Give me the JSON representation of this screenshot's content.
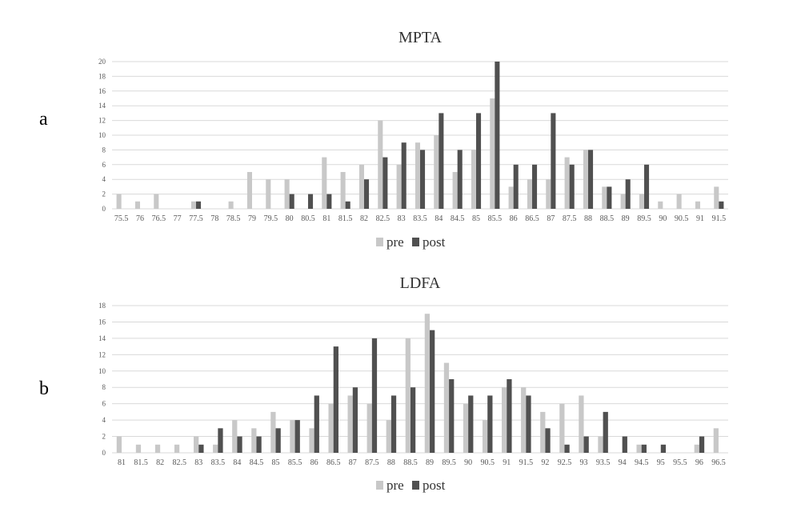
{
  "panel_labels": [
    "a",
    "b"
  ],
  "colors": {
    "pre": "#c8c8c8",
    "post": "#505050",
    "grid": "#d9d9d9",
    "text": "#595959"
  },
  "chart_data": [
    {
      "type": "bar",
      "title": "MPTA",
      "xlabel": "",
      "ylabel": "",
      "ylim": [
        0,
        20
      ],
      "ystep": 2,
      "grid": true,
      "legend": "bottom",
      "categories": [
        "75.5",
        "76",
        "76.5",
        "77",
        "77.5",
        "78",
        "78.5",
        "79",
        "79.5",
        "80",
        "80.5",
        "81",
        "81.5",
        "82",
        "82.5",
        "83",
        "83.5",
        "84",
        "84.5",
        "85",
        "85.5",
        "86",
        "86.5",
        "87",
        "87.5",
        "88",
        "88.5",
        "89",
        "89.5",
        "90",
        "90.5",
        "91",
        "91.5"
      ],
      "series": [
        {
          "name": "pre",
          "values": [
            2,
            1,
            2,
            0,
            1,
            0,
            1,
            5,
            4,
            4,
            0,
            7,
            5,
            6,
            12,
            6,
            9,
            10,
            5,
            8,
            15,
            3,
            4,
            4,
            7,
            8,
            3,
            2,
            2,
            1,
            2,
            1,
            3
          ]
        },
        {
          "name": "post",
          "values": [
            0,
            0,
            0,
            0,
            1,
            0,
            0,
            0,
            0,
            2,
            2,
            2,
            1,
            4,
            7,
            9,
            8,
            13,
            8,
            13,
            20,
            6,
            6,
            13,
            6,
            8,
            3,
            4,
            6,
            0,
            0,
            0,
            1
          ]
        }
      ]
    },
    {
      "type": "bar",
      "title": "LDFA",
      "xlabel": "",
      "ylabel": "",
      "ylim": [
        0,
        18
      ],
      "ystep": 2,
      "grid": true,
      "legend": "bottom",
      "categories": [
        "81",
        "81.5",
        "82",
        "82.5",
        "83",
        "83.5",
        "84",
        "84.5",
        "85",
        "85.5",
        "86",
        "86.5",
        "87",
        "87.5",
        "88",
        "88.5",
        "89",
        "89.5",
        "90",
        "90.5",
        "91",
        "91.5",
        "92",
        "92.5",
        "93",
        "93.5",
        "94",
        "94.5",
        "95",
        "95.5",
        "96",
        "96.5"
      ],
      "series": [
        {
          "name": "pre",
          "values": [
            2,
            1,
            1,
            1,
            2,
            1,
            4,
            3,
            5,
            4,
            3,
            6,
            7,
            6,
            4,
            14,
            17,
            11,
            6,
            4,
            8,
            8,
            5,
            6,
            7,
            2,
            0,
            1,
            0,
            0,
            1,
            3
          ]
        },
        {
          "name": "post",
          "values": [
            0,
            0,
            0,
            0,
            1,
            3,
            2,
            2,
            3,
            4,
            7,
            13,
            8,
            14,
            7,
            8,
            15,
            9,
            7,
            7,
            9,
            7,
            3,
            1,
            2,
            5,
            2,
            1,
            1,
            0,
            2,
            0
          ]
        }
      ]
    }
  ]
}
